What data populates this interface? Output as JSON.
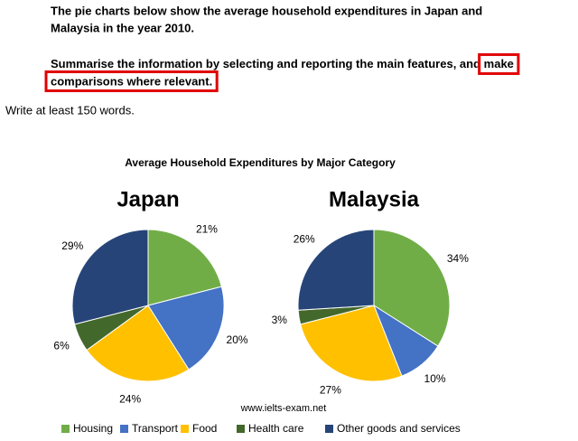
{
  "prompt": {
    "paragraph1": [
      "The pie charts below show the average household expenditures in Japan and",
      "Malaysia in the year 2010."
    ],
    "paragraph2_line1": "Summarise the information by selecting and reporting the main features, and ",
    "highlight1": "make",
    "highlight2": "comparisons where relevant.",
    "instruction": "Write at least 150 words."
  },
  "figure_title": "Average Household Expenditures by Major Category",
  "watermark": "www.ielts-exam.net",
  "chart_data": [
    {
      "type": "pie",
      "title": "Japan",
      "categories": [
        "Housing",
        "Transport",
        "Food",
        "Health care",
        "Other goods and services"
      ],
      "values": [
        21,
        20,
        24,
        6,
        29
      ],
      "value_labels": [
        "21%",
        "20%",
        "24%",
        "6%",
        "29%"
      ],
      "colors": [
        "#70ad47",
        "#4472c4",
        "#ffc000",
        "#43682b",
        "#264478"
      ]
    },
    {
      "type": "pie",
      "title": "Malaysia",
      "categories": [
        "Housing",
        "Transport",
        "Food",
        "Health care",
        "Other goods and services"
      ],
      "values": [
        34,
        10,
        27,
        3,
        26
      ],
      "value_labels": [
        "34%",
        "10%",
        "27%",
        "3%",
        "26%"
      ],
      "colors": [
        "#70ad47",
        "#4472c4",
        "#ffc000",
        "#43682b",
        "#264478"
      ]
    }
  ]
}
